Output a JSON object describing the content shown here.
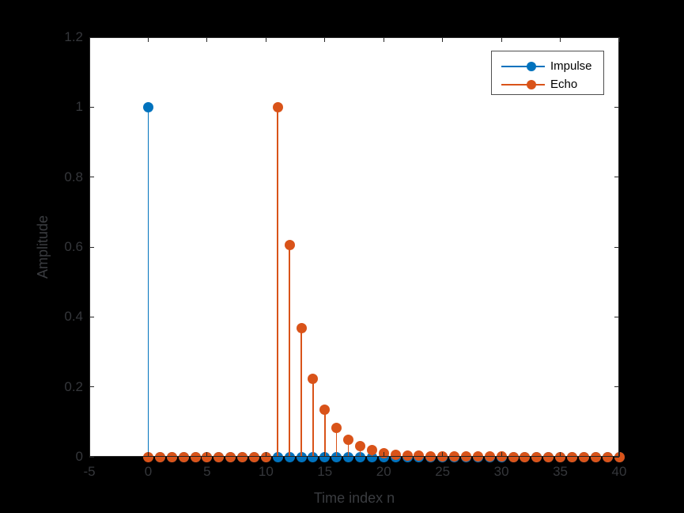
{
  "figure": {
    "background_color": "#000000",
    "plot_background_color": "#ffffff",
    "axis_color": "#262626",
    "tick_label_color": "#35373b",
    "axis_label_color": "#3a3c40"
  },
  "chart_data": {
    "type": "stem",
    "title": "",
    "xlabel": "Time index n",
    "ylabel": "Amplitude",
    "xlim": [
      -5,
      40
    ],
    "ylim": [
      0,
      1.2
    ],
    "grid": false,
    "xticks": [
      -5,
      0,
      5,
      10,
      15,
      20,
      25,
      30,
      35,
      40
    ],
    "xtick_labels": [
      "-5",
      "0",
      "5",
      "10",
      "15",
      "20",
      "25",
      "30",
      "35",
      "40"
    ],
    "yticks": [
      0,
      0.2,
      0.4,
      0.6,
      0.8,
      1,
      1.2
    ],
    "ytick_labels": [
      "0",
      "0.2",
      "0.4",
      "0.6",
      "0.8",
      "1",
      "1.2"
    ],
    "x": [
      0,
      1,
      2,
      3,
      4,
      5,
      6,
      7,
      8,
      9,
      10,
      11,
      12,
      13,
      14,
      15,
      16,
      17,
      18,
      19,
      20,
      21,
      22,
      23,
      24,
      25,
      26,
      27,
      28,
      29,
      30,
      31,
      32,
      33,
      34,
      35,
      36,
      37,
      38,
      39,
      40
    ],
    "series": [
      {
        "name": "Impulse",
        "color": "#0072BD",
        "values": [
          1,
          0,
          0,
          0,
          0,
          0,
          0,
          0,
          0,
          0,
          0,
          0,
          0,
          0,
          0,
          0,
          0,
          0,
          0,
          0,
          0,
          0,
          0,
          0,
          0,
          0,
          0,
          0,
          0,
          0,
          0,
          0,
          0,
          0,
          0,
          0,
          0,
          0,
          0,
          0,
          0
        ]
      },
      {
        "name": "Echo",
        "color": "#D95319",
        "values": [
          0,
          0,
          0,
          0,
          0,
          0,
          0,
          0,
          0,
          0,
          0,
          1,
          0.6065,
          0.3679,
          0.2231,
          0.1353,
          0.0821,
          0.0498,
          0.0302,
          0.0183,
          0.0111,
          0.0067,
          0.0041,
          0.0025,
          0.0015,
          0.0009,
          0.0006,
          0.0003,
          0.0002,
          0.0001,
          0.0001,
          0,
          0,
          0,
          0,
          0,
          0,
          0,
          0,
          0,
          0
        ]
      }
    ],
    "legend": {
      "position": "top-right",
      "entries": [
        "Impulse",
        "Echo"
      ]
    }
  }
}
